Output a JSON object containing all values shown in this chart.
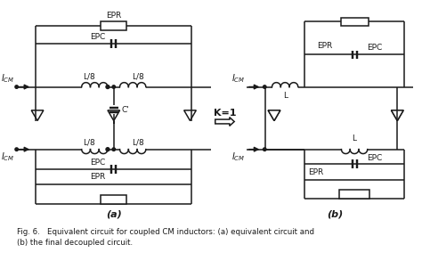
{
  "fig_width": 4.74,
  "fig_height": 3.11,
  "dpi": 100,
  "bg_color": "#ffffff",
  "line_color": "#1a1a1a",
  "caption": "Fig. 6.   Equivalent circuit for coupled CM inductors: (a) equivalent circuit and\n(b) the final decoupled circuit.",
  "label_a": "(a)",
  "label_b": "(b)",
  "k_label": "K=1"
}
